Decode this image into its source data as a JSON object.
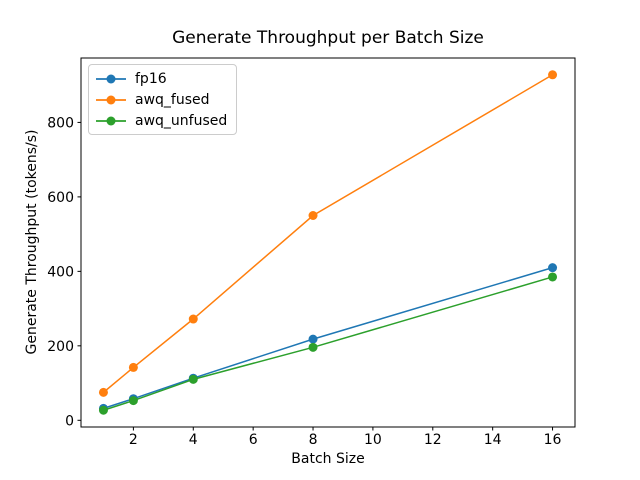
{
  "chart_data": {
    "type": "line",
    "title": "Generate Throughput per Batch Size",
    "xlabel": "Batch Size",
    "ylabel": "Generate Throughput (tokens/s)",
    "x": [
      1,
      2,
      4,
      8,
      16
    ],
    "series": [
      {
        "name": "fp16",
        "color": "#1f77b4",
        "values": [
          32,
          58,
          113,
          218,
          410
        ]
      },
      {
        "name": "awq_fused",
        "color": "#ff7f0e",
        "values": [
          75,
          142,
          272,
          550,
          928
        ]
      },
      {
        "name": "awq_unfused",
        "color": "#2ca02c",
        "values": [
          27,
          53,
          110,
          196,
          385
        ]
      }
    ],
    "xticks": [
      2,
      4,
      6,
      8,
      10,
      12,
      14,
      16
    ],
    "yticks": [
      0,
      200,
      400,
      600,
      800
    ],
    "xlim": [
      0.25,
      16.75
    ],
    "ylim": [
      -18,
      973
    ],
    "grid": false,
    "legend_position": "upper left",
    "marker": "o",
    "line_width": 1.5,
    "marker_radius": 4.5,
    "axes_color": "#000000"
  }
}
